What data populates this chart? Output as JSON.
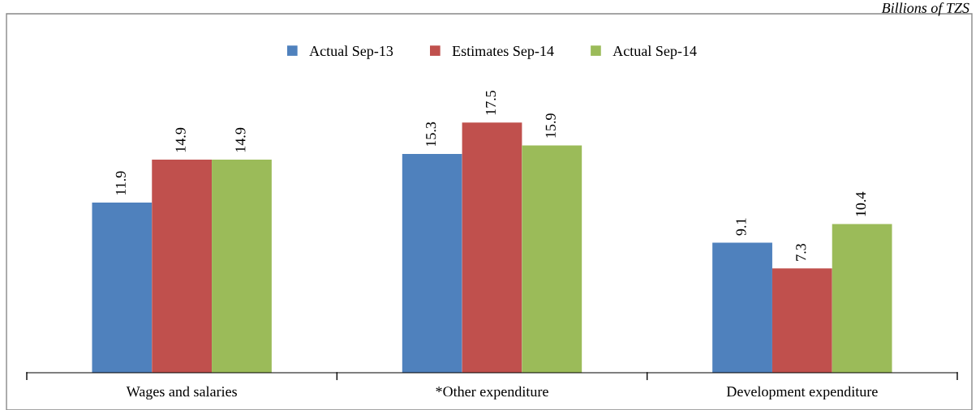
{
  "chart_data": {
    "type": "bar",
    "annotations": [
      "Billions of TZS"
    ],
    "categories": [
      "Wages and salaries",
      "*Other expenditure",
      "Development expenditure"
    ],
    "series": [
      {
        "name": "Actual Sep-13",
        "color": "#4f81bd",
        "values": [
          11.9,
          15.3,
          9.1
        ]
      },
      {
        "name": "Estimates Sep-14",
        "color": "#c0504d",
        "values": [
          14.9,
          17.5,
          7.3
        ]
      },
      {
        "name": "Actual Sep-14",
        "color": "#9bbb59",
        "values": [
          14.9,
          15.9,
          10.4
        ]
      }
    ],
    "data_labels": true,
    "legend": "top",
    "grid": false
  }
}
